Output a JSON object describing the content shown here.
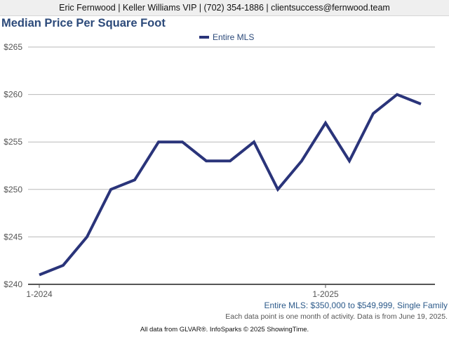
{
  "header": {
    "contact": "Eric Fernwood | Keller Williams VIP | (702) 354-1886 | clientsuccess@fernwood.team"
  },
  "chart_data": {
    "type": "line",
    "title": "Median Price Per Square Foot",
    "x": [
      "1-2024",
      "2-2024",
      "3-2024",
      "4-2024",
      "5-2024",
      "6-2024",
      "7-2024",
      "8-2024",
      "9-2024",
      "10-2024",
      "11-2024",
      "12-2024",
      "1-2025",
      "2-2025",
      "3-2025",
      "4-2025",
      "5-2025"
    ],
    "x_tick_labels": [
      "1-2024",
      "1-2025"
    ],
    "series": [
      {
        "name": "Entire MLS",
        "values": [
          241,
          242,
          245,
          250,
          251,
          255,
          255,
          253,
          253,
          255,
          250,
          253,
          257,
          253,
          258,
          260,
          259
        ]
      }
    ],
    "y_tick_labels": [
      "$240",
      "$245",
      "$250",
      "$255",
      "$260",
      "$265"
    ],
    "ylim": [
      240,
      265
    ],
    "grid": true,
    "legend": "top-center",
    "line_color": "#2a347a",
    "subtitle": "Entire MLS: $350,000 to $549,999, Single Family",
    "note": "Each data point is one month of activity. Data is from June 19, 2025."
  },
  "footer": {
    "source": "All data from GLVAR®. InfoSparks © 2025 ShowingTime."
  }
}
